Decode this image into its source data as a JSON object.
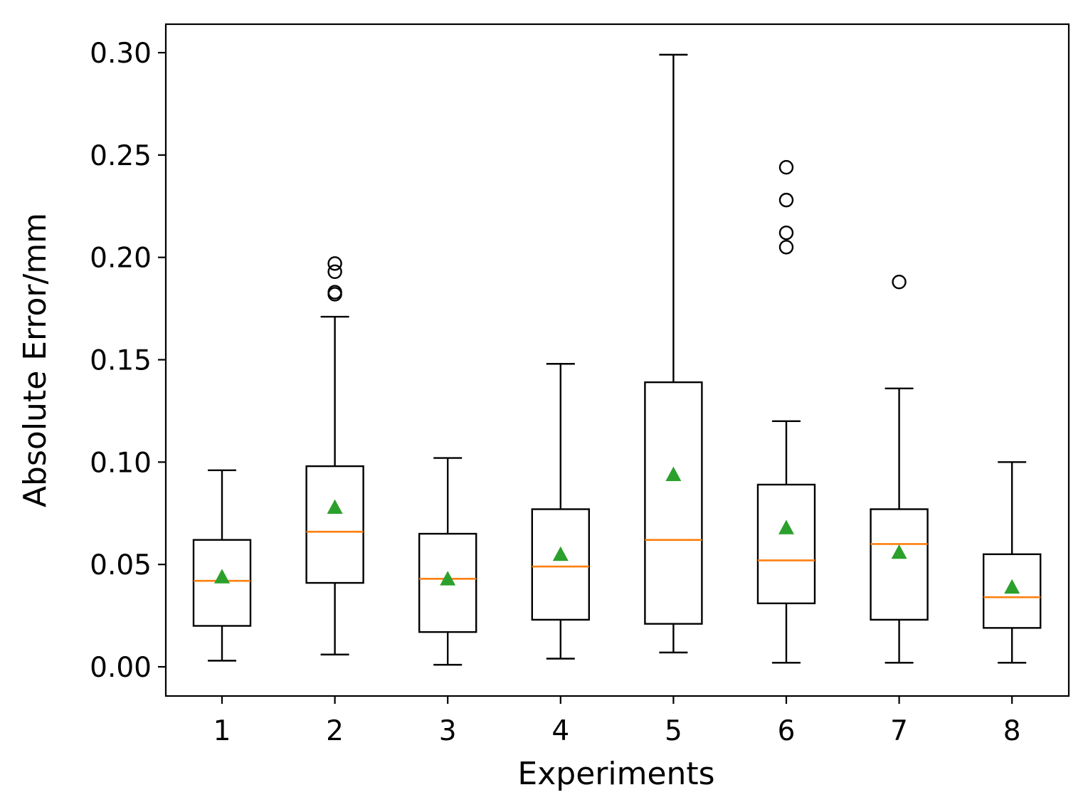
{
  "chart_data": {
    "type": "boxplot",
    "title": "",
    "xlabel": "Experiments",
    "ylabel": "Absolute Error/mm",
    "ylim": [
      -0.014,
      0.314
    ],
    "yticks": [
      0.0,
      0.05,
      0.1,
      0.15,
      0.2,
      0.25,
      0.3
    ],
    "ytick_labels": [
      "0.00",
      "0.05",
      "0.10",
      "0.15",
      "0.20",
      "0.25",
      "0.30"
    ],
    "categories": [
      "1",
      "2",
      "3",
      "4",
      "5",
      "6",
      "7",
      "8"
    ],
    "grid": false,
    "colors": {
      "box": "#000000",
      "median": "#ff7f0e",
      "mean": "#2ca02c",
      "flier": "#000000"
    },
    "boxes": [
      {
        "label": "1",
        "whisker_low": 0.003,
        "q1": 0.02,
        "median": 0.042,
        "q3": 0.062,
        "whisker_high": 0.096,
        "mean": 0.044,
        "outliers": []
      },
      {
        "label": "2",
        "whisker_low": 0.006,
        "q1": 0.041,
        "median": 0.066,
        "q3": 0.098,
        "whisker_high": 0.171,
        "mean": 0.078,
        "outliers": [
          0.182,
          0.183,
          0.193,
          0.197
        ]
      },
      {
        "label": "3",
        "whisker_low": 0.001,
        "q1": 0.017,
        "median": 0.043,
        "q3": 0.065,
        "whisker_high": 0.102,
        "mean": 0.043,
        "outliers": []
      },
      {
        "label": "4",
        "whisker_low": 0.004,
        "q1": 0.023,
        "median": 0.049,
        "q3": 0.077,
        "whisker_high": 0.148,
        "mean": 0.055,
        "outliers": []
      },
      {
        "label": "5",
        "whisker_low": 0.007,
        "q1": 0.021,
        "median": 0.062,
        "q3": 0.139,
        "whisker_high": 0.299,
        "mean": 0.094,
        "outliers": []
      },
      {
        "label": "6",
        "whisker_low": 0.002,
        "q1": 0.031,
        "median": 0.052,
        "q3": 0.089,
        "whisker_high": 0.12,
        "mean": 0.068,
        "outliers": [
          0.205,
          0.212,
          0.228,
          0.244
        ]
      },
      {
        "label": "7",
        "whisker_low": 0.002,
        "q1": 0.023,
        "median": 0.06,
        "q3": 0.077,
        "whisker_high": 0.136,
        "mean": 0.056,
        "outliers": [
          0.188
        ]
      },
      {
        "label": "8",
        "whisker_low": 0.002,
        "q1": 0.019,
        "median": 0.034,
        "q3": 0.055,
        "whisker_high": 0.1,
        "mean": 0.039,
        "outliers": []
      }
    ]
  }
}
